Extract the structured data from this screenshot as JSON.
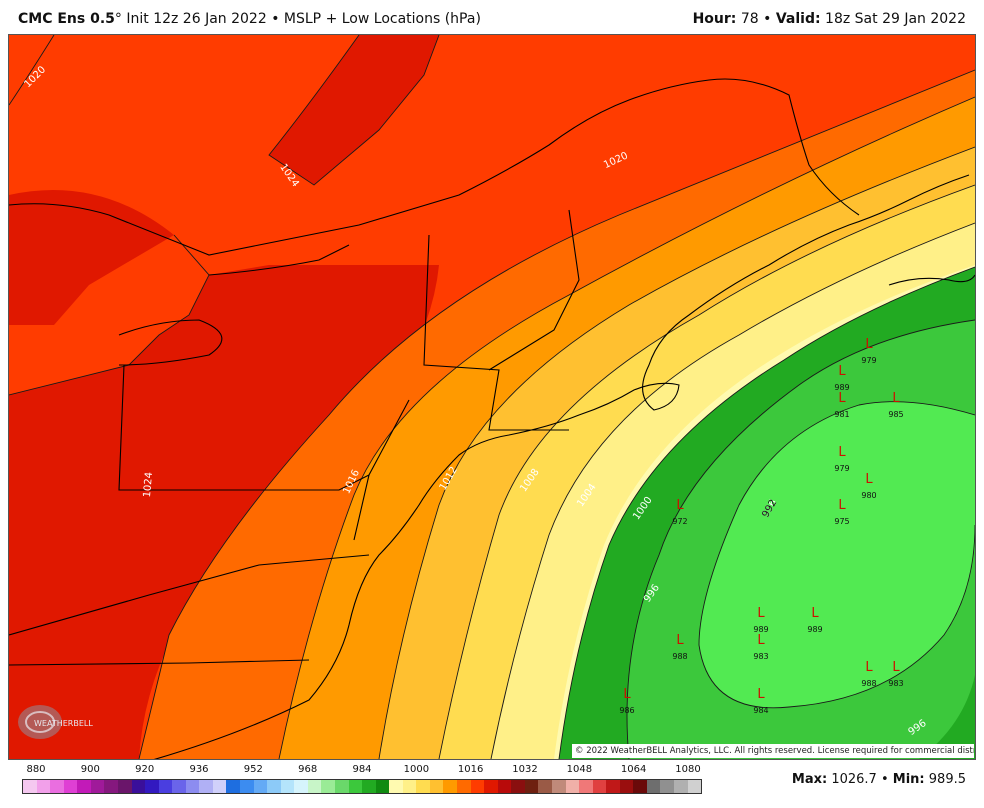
{
  "header": {
    "model": "CMC Ens 0.5",
    "degree": "°",
    "init": "Init 12z 26 Jan 2022",
    "bullet": "•",
    "product": "MSLP + Low Locations (hPa)",
    "hour_label": "Hour:",
    "hour": "78",
    "valid_label": "Valid:",
    "valid": "18z Sat 29 Jan 2022"
  },
  "map": {
    "isobar_labels": [
      "1020",
      "1024",
      "1020",
      "1024",
      "1016",
      "1012",
      "1008",
      "1004",
      "1000",
      "996",
      "996",
      "992",
      "996"
    ],
    "lows": [
      {
        "symbol": "L",
        "value": "979"
      },
      {
        "symbol": "L",
        "value": "989"
      },
      {
        "symbol": "L",
        "value": "981"
      },
      {
        "symbol": "L",
        "value": "985"
      },
      {
        "symbol": "L",
        "value": "979"
      },
      {
        "symbol": "L",
        "value": "980"
      },
      {
        "symbol": "L",
        "value": "975"
      },
      {
        "symbol": "L",
        "value": "972"
      },
      {
        "symbol": "L",
        "value": "989"
      },
      {
        "symbol": "L",
        "value": "989"
      },
      {
        "symbol": "L",
        "value": "983"
      },
      {
        "symbol": "L",
        "value": "988"
      },
      {
        "symbol": "L",
        "value": "988"
      },
      {
        "symbol": "L",
        "value": "983"
      },
      {
        "symbol": "L",
        "value": "986"
      },
      {
        "symbol": "L",
        "value": "984"
      }
    ],
    "low_color": "#cc1100",
    "copyright": "© 2022 WeatherBELL Analytics, LLC. All rights reserved. License required for commercial distribution.",
    "logo_text": "WEATHERBELL"
  },
  "legend": {
    "ticks": [
      "880",
      "900",
      "920",
      "936",
      "952",
      "968",
      "984",
      "1000",
      "1016",
      "1032",
      "1048",
      "1064",
      "1080"
    ],
    "colors": [
      "#f5c8f0",
      "#f2a0ea",
      "#ea6ee0",
      "#df3fd4",
      "#c21ab8",
      "#a01a9a",
      "#85187e",
      "#6a156a",
      "#3a0f9a",
      "#3219c0",
      "#4a3ee0",
      "#6a64ea",
      "#8c8cf0",
      "#b0b0f5",
      "#d0d0fa",
      "#1e6ee0",
      "#3c8cf0",
      "#64aaf5",
      "#8ccaf8",
      "#b4e4fb",
      "#d6f4fc",
      "#c8f5c8",
      "#9aeb96",
      "#6ad86a",
      "#3cc83c",
      "#22aa22",
      "#108a10",
      "#fffab0",
      "#fff088",
      "#ffdc50",
      "#ffc030",
      "#ff9a00",
      "#ff6a00",
      "#ff3c00",
      "#e01800",
      "#b80a0a",
      "#8a0f0f",
      "#6e2010",
      "#9a5a46",
      "#c08a7a",
      "#f0b0a8",
      "#f07878",
      "#e04040",
      "#c01818",
      "#9a0e0e",
      "#6a0a0a",
      "#6e6e6e",
      "#909090",
      "#b0b0b0",
      "#d0d0d0"
    ]
  },
  "stats": {
    "max_label": "Max:",
    "max": "1026.7",
    "min_label": "Min:",
    "min": "989.5",
    "bullet": "•"
  }
}
